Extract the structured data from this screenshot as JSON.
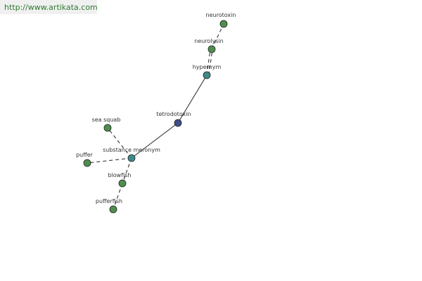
{
  "header": {
    "url": "http://www.artikata.com"
  },
  "nodes": [
    {
      "label": "neurotoxin"
    },
    {
      "label": "neurolysin"
    },
    {
      "label": "hypernym"
    },
    {
      "label": "tetrodotoxin"
    },
    {
      "label": "sea squab"
    },
    {
      "label": "substance meronym"
    },
    {
      "label": "puffer"
    },
    {
      "label": "blowfish"
    },
    {
      "label": "pufferfish"
    }
  ]
}
